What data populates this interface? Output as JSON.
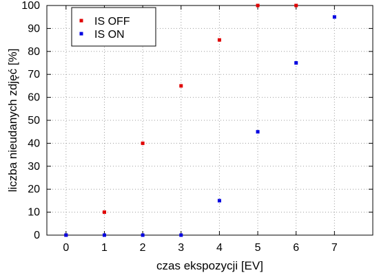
{
  "chart_data": {
    "type": "scatter",
    "title": "",
    "xlabel": "czas ekspozycji [EV]",
    "ylabel": "liczba nieudanych zdjęć [%]",
    "xlim": [
      -0.5,
      8
    ],
    "ylim": [
      0,
      100
    ],
    "x_ticks": [
      "0",
      "1",
      "2",
      "3",
      "4",
      "5",
      "6",
      "7"
    ],
    "y_ticks": [
      "0",
      "10",
      "20",
      "30",
      "40",
      "50",
      "60",
      "70",
      "80",
      "90",
      "100"
    ],
    "grid": true,
    "grid_style": "dotted",
    "legend_position": "top-left",
    "series": [
      {
        "name": "IS OFF",
        "color": "#e00000",
        "x": [
          0,
          1,
          2,
          3,
          4,
          5,
          6
        ],
        "y": [
          0,
          10,
          40,
          65,
          85,
          100,
          100
        ]
      },
      {
        "name": "IS ON",
        "color": "#0000e0",
        "x": [
          0,
          1,
          2,
          3,
          4,
          5,
          6,
          7
        ],
        "y": [
          0,
          0,
          0,
          0,
          15,
          45,
          75,
          95
        ]
      }
    ]
  }
}
